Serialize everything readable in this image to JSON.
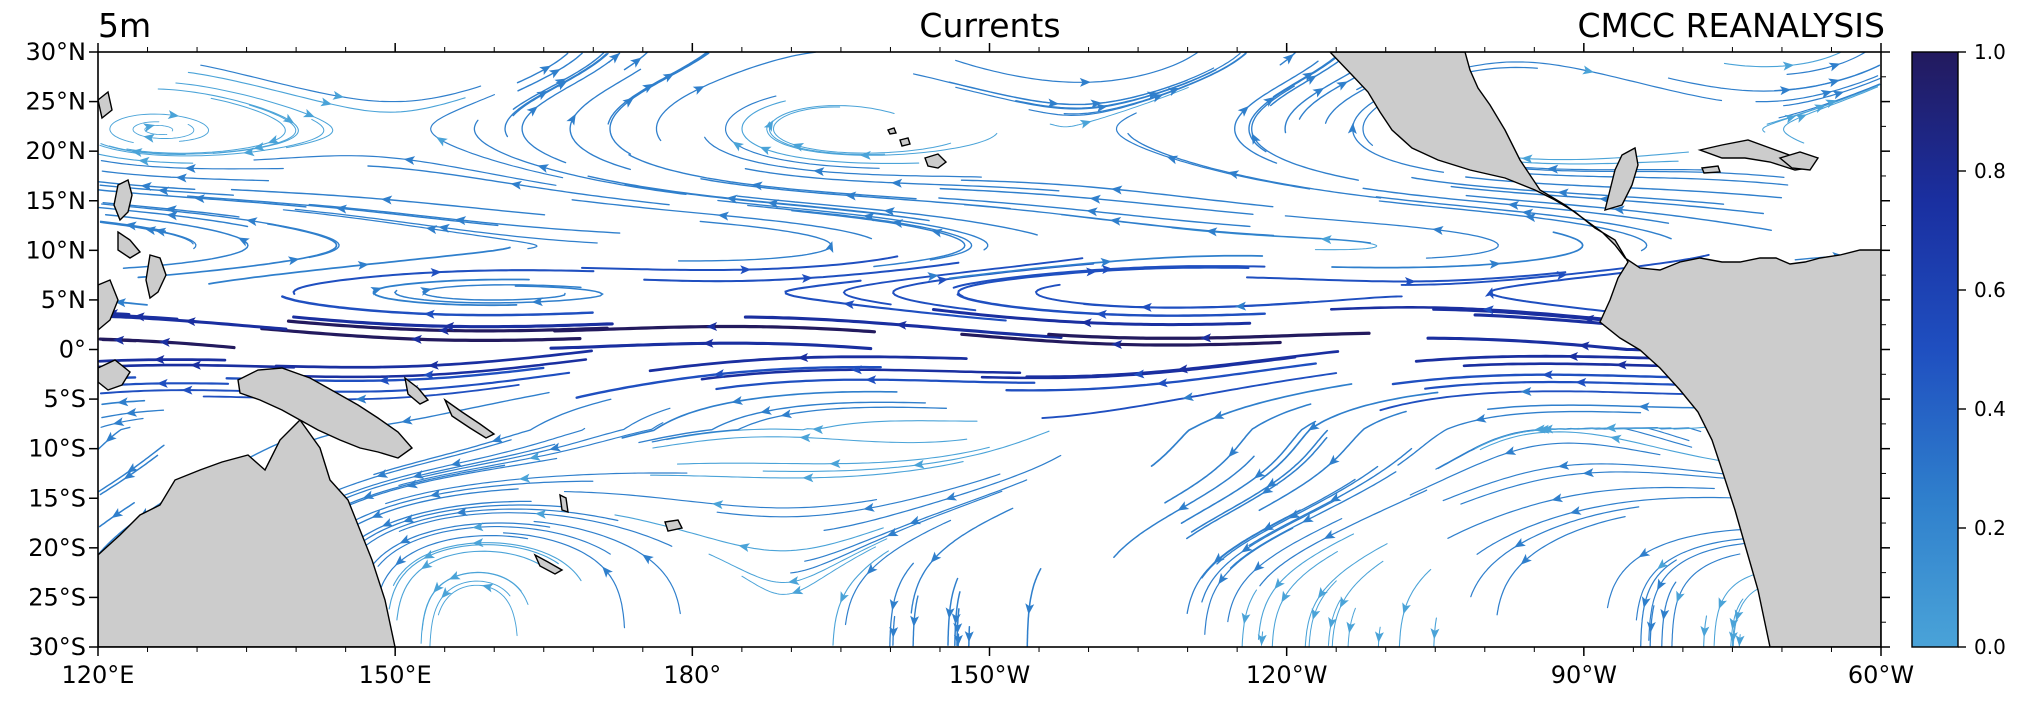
{
  "titles": {
    "left": "5m",
    "center": "Currents",
    "right": "CMCC REANALYSIS"
  },
  "map": {
    "projection": "PlateCarree",
    "lon_range": [
      120,
      300
    ],
    "lat_range": [
      -30,
      30
    ],
    "lon_ticks": [
      {
        "lon": 120,
        "label": "120°E"
      },
      {
        "lon": 150,
        "label": "150°E"
      },
      {
        "lon": 180,
        "label": "180°"
      },
      {
        "lon": 210,
        "label": "150°W"
      },
      {
        "lon": 240,
        "label": "120°W"
      },
      {
        "lon": 270,
        "label": "90°W"
      },
      {
        "lon": 300,
        "label": "60°W"
      }
    ],
    "lat_ticks": [
      {
        "lat": 30,
        "label": "30°N"
      },
      {
        "lat": 25,
        "label": "25°N"
      },
      {
        "lat": 20,
        "label": "20°N"
      },
      {
        "lat": 15,
        "label": "15°N"
      },
      {
        "lat": 10,
        "label": "10°N"
      },
      {
        "lat": 5,
        "label": "5°N"
      },
      {
        "lat": 0,
        "label": "0°"
      },
      {
        "lat": -5,
        "label": "5°S"
      },
      {
        "lat": -10,
        "label": "10°S"
      },
      {
        "lat": -15,
        "label": "15°S"
      },
      {
        "lat": -20,
        "label": "20°S"
      },
      {
        "lat": -25,
        "label": "25°S"
      },
      {
        "lat": -30,
        "label": "30°S"
      }
    ],
    "land_color": "#cccccc",
    "coast_color": "#000000",
    "ocean_color": "#ffffff"
  },
  "colorbar": {
    "range": [
      0.0,
      1.0
    ],
    "ticks": [
      "0.0",
      "0.2",
      "0.4",
      "0.6",
      "0.8",
      "1.0"
    ],
    "colors": [
      "#4aa3d8",
      "#2f7fcc",
      "#1f4fc0",
      "#1a2fa0",
      "#231a5e"
    ]
  },
  "currents": {
    "description_bands": [
      {
        "lat": 2.5,
        "speed": 0.55,
        "dir": "westward"
      },
      {
        "lat": -1,
        "speed": 0.45,
        "dir": "westward"
      },
      {
        "lat": 7,
        "speed": 0.45,
        "dir": "eastward"
      }
    ]
  }
}
